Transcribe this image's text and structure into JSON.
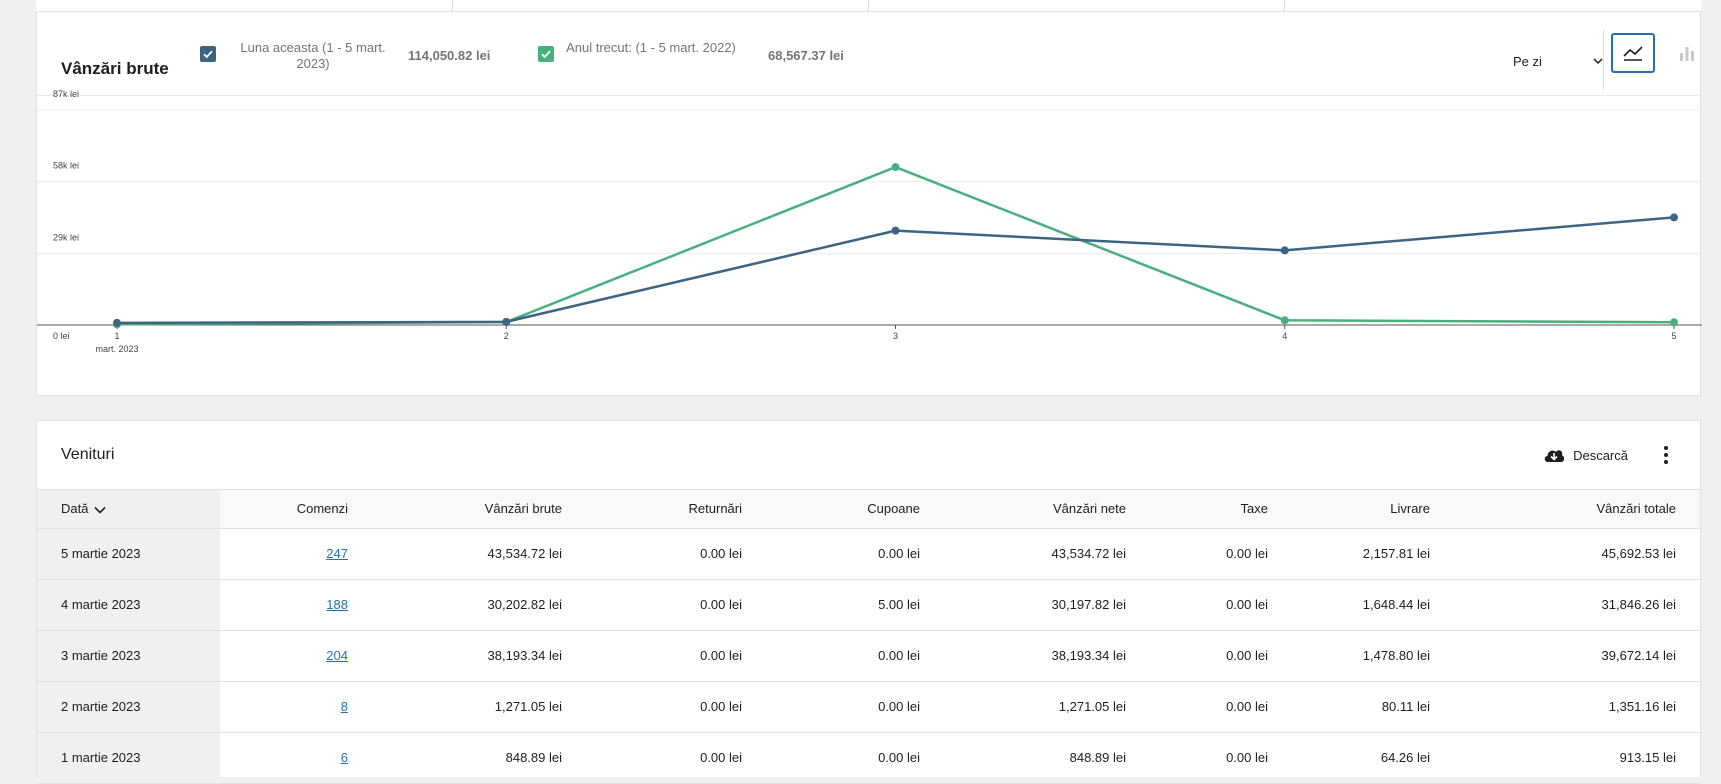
{
  "chart_card": {
    "title": "Vânzări brute",
    "legend": [
      {
        "label": "Luna aceasta (1 - 5 mart. 2023)",
        "value": "114,050.82 lei",
        "color": "#3d6482"
      },
      {
        "label": "Anul trecut: (1 - 5 mart. 2022)",
        "value": "68,567.37 lei",
        "color": "#49b07d"
      }
    ],
    "interval": "Pe zi",
    "chart_types": {
      "line": "line-chart-icon",
      "bar": "bar-chart-icon"
    }
  },
  "chart_data": {
    "type": "line",
    "x": [
      1,
      2,
      3,
      4,
      5
    ],
    "x_tick_labels": [
      "1",
      "2",
      "3",
      "4",
      "5"
    ],
    "x_sub_label": "mart. 2023",
    "y_ticks": [
      0,
      29000,
      58000,
      87000
    ],
    "y_tick_labels": [
      "0 lei",
      "29k lei",
      "58k lei",
      "87k lei"
    ],
    "ylim": [
      0,
      87000
    ],
    "grid": true,
    "series": [
      {
        "values": [
          849,
          1271,
          38193,
          30203,
          43535
        ],
        "color": "#3d6482"
      },
      {
        "values": [
          300,
          1200,
          63900,
          1900,
          1100
        ],
        "color": "#49b07d"
      }
    ]
  },
  "table_card": {
    "title": "Venituri",
    "download_label": "Descarcă",
    "columns": [
      "Dată",
      "Comenzi",
      "Vânzări brute",
      "Returnări",
      "Cupoane",
      "Vânzări nete",
      "Taxe",
      "Livrare",
      "Vânzări totale"
    ],
    "rows": [
      [
        "5 martie 2023",
        "247",
        "43,534.72 lei",
        "0.00 lei",
        "0.00 lei",
        "43,534.72 lei",
        "0.00 lei",
        "2,157.81 lei",
        "45,692.53 lei"
      ],
      [
        "4 martie 2023",
        "188",
        "30,202.82 lei",
        "0.00 lei",
        "5.00 lei",
        "30,197.82 lei",
        "0.00 lei",
        "1,648.44 lei",
        "31,846.26 lei"
      ],
      [
        "3 martie 2023",
        "204",
        "38,193.34 lei",
        "0.00 lei",
        "0.00 lei",
        "38,193.34 lei",
        "0.00 lei",
        "1,478.80 lei",
        "39,672.14 lei"
      ],
      [
        "2 martie 2023",
        "8",
        "1,271.05 lei",
        "0.00 lei",
        "0.00 lei",
        "1,271.05 lei",
        "0.00 lei",
        "80.11 lei",
        "1,351.16 lei"
      ],
      [
        "1 martie 2023",
        "6",
        "848.89 lei",
        "0.00 lei",
        "0.00 lei",
        "848.89 lei",
        "0.00 lei",
        "64.26 lei",
        "913.15 lei"
      ]
    ]
  }
}
